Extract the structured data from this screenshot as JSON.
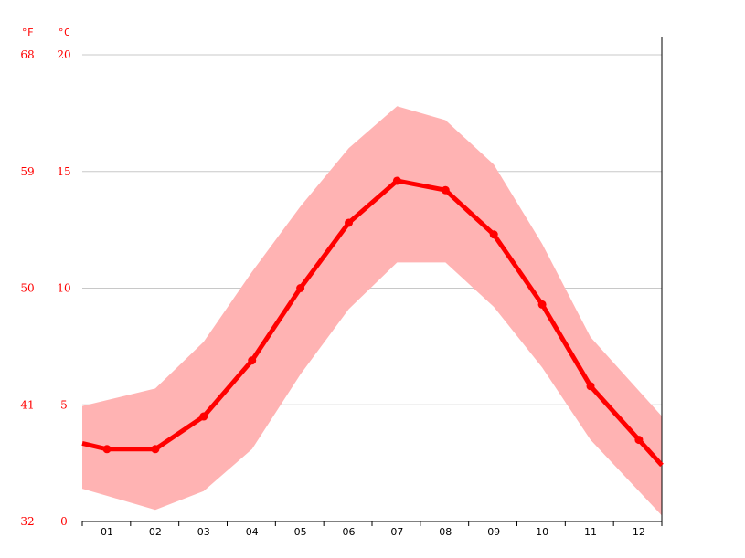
{
  "chart_data": {
    "type": "line",
    "title": "",
    "xlabel": "",
    "ylabel": "",
    "units": {
      "fahrenheit": "°F",
      "celsius": "°C"
    },
    "categories": [
      "01",
      "02",
      "03",
      "04",
      "05",
      "06",
      "07",
      "08",
      "09",
      "10",
      "11",
      "12"
    ],
    "ylim": [
      0,
      20
    ],
    "yticks_c": [
      "20",
      "15",
      "10",
      "5",
      "0"
    ],
    "yticks_f": [
      "68",
      "59",
      "50",
      "41",
      "32"
    ],
    "series": [
      {
        "values": [
          3.1,
          3.1,
          4.5,
          6.9,
          10.0,
          12.8,
          14.6,
          14.2,
          12.3,
          9.3,
          5.8,
          3.5
        ]
      }
    ],
    "band": {
      "upper": [
        5.2,
        5.7,
        7.7,
        10.7,
        13.5,
        16.0,
        17.8,
        17.2,
        15.3,
        11.9,
        7.9,
        5.6
      ],
      "lower": [
        1.1,
        0.5,
        1.3,
        3.1,
        6.3,
        9.1,
        11.1,
        11.1,
        9.2,
        6.6,
        3.5,
        1.3
      ]
    },
    "grid": true,
    "colors": {
      "line": "#ff0000",
      "band": "#ffb3b3",
      "grid": "#c8c8c8",
      "axis_text": "#ff0000"
    }
  }
}
